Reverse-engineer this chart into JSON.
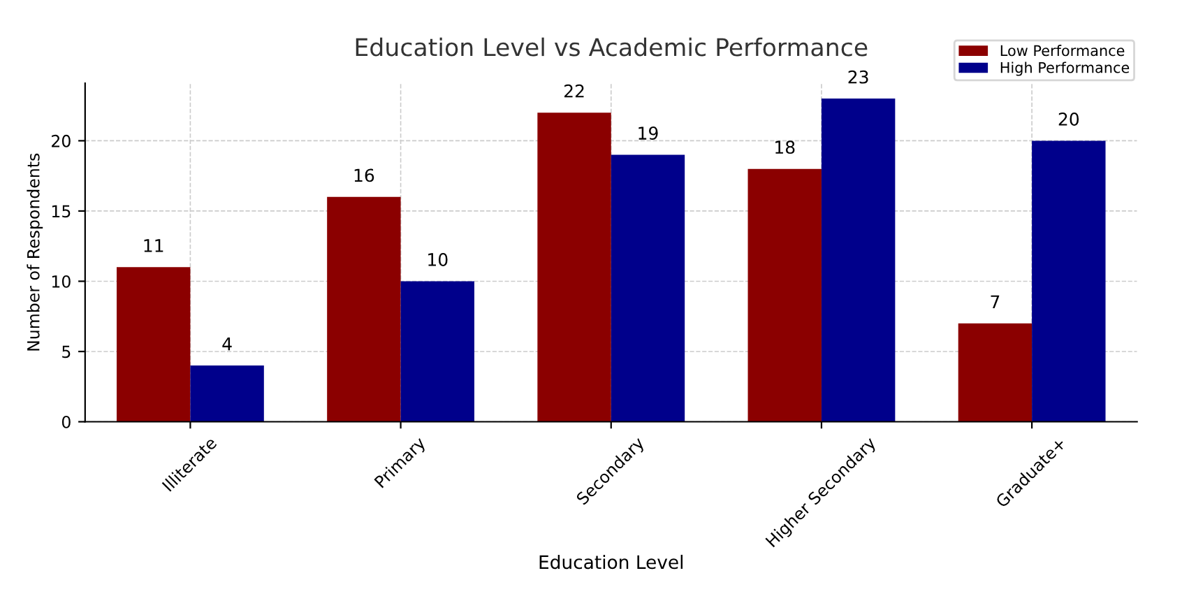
{
  "chart_data": {
    "type": "bar",
    "title": "Education Level vs Academic Performance",
    "xlabel": "Education Level",
    "ylabel": "Number of Respondents",
    "categories": [
      "Illiterate",
      "Primary",
      "Secondary",
      "Higher Secondary",
      "Graduate+"
    ],
    "series": [
      {
        "name": "Low Performance",
        "color": "#8b0000",
        "values": [
          11,
          16,
          22,
          18,
          7
        ]
      },
      {
        "name": "High Performance",
        "color": "#00008b",
        "values": [
          4,
          10,
          19,
          23,
          20
        ]
      }
    ],
    "ylim": [
      0,
      24.1
    ],
    "yticks": [
      0,
      5,
      10,
      15,
      20
    ],
    "grid": true,
    "legend": "top right",
    "data_labels": true
  }
}
